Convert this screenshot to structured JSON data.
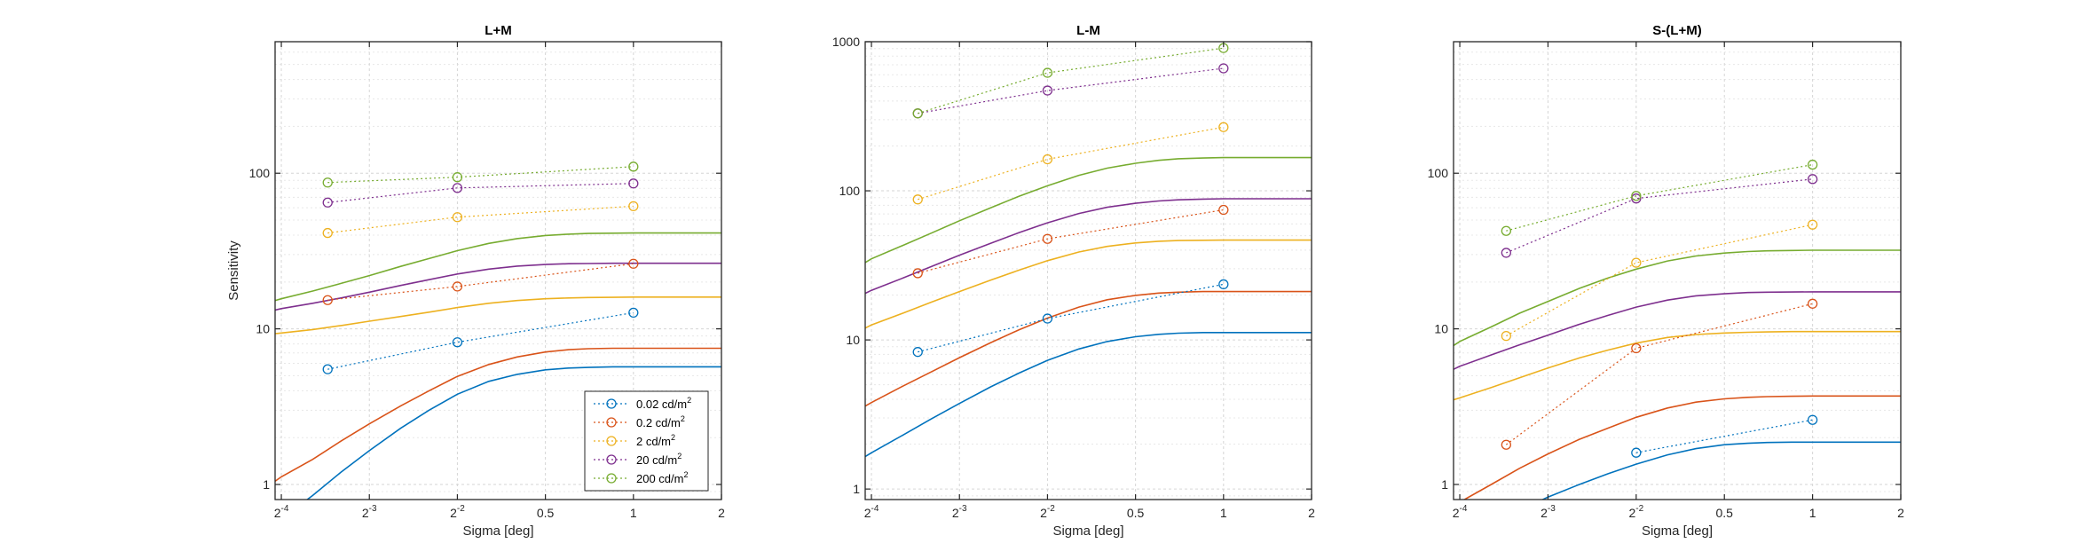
{
  "colors": [
    "#0072bd",
    "#d95319",
    "#edb120",
    "#7e2f8e",
    "#77ac30"
  ],
  "legend_labels": [
    "0.02 cd/m2",
    "0.2 cd/m2",
    "2 cd/m2",
    "20 cd/m2",
    "200 cd/m2"
  ],
  "chart_data": [
    {
      "type": "line",
      "title": "L+M",
      "xlabel": "Sigma [deg]",
      "ylabel": "Sensitivity",
      "xscale": "log2",
      "yscale": "log10",
      "xlim": [
        0.0595,
        2
      ],
      "ylim": [
        0.8,
        700
      ],
      "xticks": [
        {
          "v": 0.0625,
          "base": "2",
          "exp": "-4"
        },
        {
          "v": 0.125,
          "base": "2",
          "exp": "-3"
        },
        {
          "v": 0.25,
          "base": "2",
          "exp": "-2"
        },
        {
          "v": 0.5,
          "base": "0.5",
          "exp": ""
        },
        {
          "v": 1,
          "base": "1",
          "exp": ""
        },
        {
          "v": 2,
          "base": "2",
          "exp": ""
        }
      ],
      "yticks": [
        {
          "v": 1,
          "label": "1"
        },
        {
          "v": 10,
          "label": "10"
        },
        {
          "v": 100,
          "label": "100"
        }
      ],
      "grid": true,
      "legend": "bottom-right",
      "measured": [
        {
          "name": "0.02 cd/m2",
          "x": [
            0.09,
            0.25,
            1
          ],
          "y": [
            5.5,
            8.2,
            12.7
          ]
        },
        {
          "name": "0.2 cd/m2",
          "x": [
            0.09,
            0.25,
            1
          ],
          "y": [
            15.3,
            18.7,
            26.2
          ]
        },
        {
          "name": "2 cd/m2",
          "x": [
            0.09,
            0.25,
            1
          ],
          "y": [
            41.3,
            52.2,
            61.4
          ]
        },
        {
          "name": "20 cd/m2",
          "x": [
            0.09,
            0.25,
            1
          ],
          "y": [
            64.8,
            80.4,
            85.9
          ]
        },
        {
          "name": "200 cd/m2",
          "x": [
            0.09,
            0.25,
            1
          ],
          "y": [
            87.1,
            94.3,
            110.2
          ]
        }
      ],
      "fits": [
        {
          "x": [
            0.0595,
            0.0625,
            0.08,
            0.1,
            0.125,
            0.16,
            0.2,
            0.25,
            0.32,
            0.4,
            0.5,
            0.6,
            0.7,
            0.85,
            1,
            1.2,
            1.5,
            2
          ],
          "y": [
            0.55,
            0.6,
            0.85,
            1.2,
            1.65,
            2.3,
            3.0,
            3.8,
            4.6,
            5.1,
            5.45,
            5.6,
            5.65,
            5.7,
            5.7,
            5.7,
            5.7,
            5.7
          ]
        },
        {
          "x": [
            0.0595,
            0.0625,
            0.08,
            0.1,
            0.125,
            0.16,
            0.2,
            0.25,
            0.32,
            0.4,
            0.5,
            0.6,
            0.7,
            0.85,
            1,
            1.2,
            1.5,
            2
          ],
          "y": [
            1.05,
            1.12,
            1.45,
            1.9,
            2.45,
            3.2,
            4.0,
            4.95,
            5.9,
            6.6,
            7.1,
            7.35,
            7.45,
            7.5,
            7.5,
            7.5,
            7.5,
            7.5
          ]
        },
        {
          "x": [
            0.0595,
            0.0625,
            0.08,
            0.1,
            0.125,
            0.16,
            0.2,
            0.25,
            0.32,
            0.4,
            0.5,
            0.6,
            0.7,
            0.85,
            1,
            1.2,
            1.5,
            2
          ],
          "y": [
            9.3,
            9.4,
            9.9,
            10.5,
            11.2,
            12.0,
            12.8,
            13.7,
            14.6,
            15.2,
            15.6,
            15.8,
            15.9,
            15.95,
            16,
            16,
            16,
            16
          ]
        },
        {
          "x": [
            0.0595,
            0.0625,
            0.08,
            0.1,
            0.125,
            0.16,
            0.2,
            0.25,
            0.32,
            0.4,
            0.5,
            0.6,
            0.7,
            0.85,
            1,
            1.2,
            1.5,
            2
          ],
          "y": [
            13.2,
            13.5,
            14.6,
            15.8,
            17.2,
            19.0,
            20.7,
            22.5,
            24.2,
            25.3,
            25.9,
            26.2,
            26.3,
            26.4,
            26.4,
            26.4,
            26.4,
            26.4
          ]
        },
        {
          "x": [
            0.0595,
            0.0625,
            0.08,
            0.1,
            0.125,
            0.16,
            0.2,
            0.25,
            0.32,
            0.4,
            0.5,
            0.6,
            0.7,
            0.85,
            1,
            1.2,
            1.5,
            2
          ],
          "y": [
            15.2,
            15.6,
            17.5,
            19.6,
            22.0,
            25.2,
            28.3,
            31.8,
            35.4,
            38.0,
            39.8,
            40.6,
            41.0,
            41.2,
            41.3,
            41.3,
            41.3,
            41.3
          ]
        }
      ]
    },
    {
      "type": "line",
      "title": "L-M",
      "xlabel": "Sigma [deg]",
      "ylabel": "",
      "xscale": "log2",
      "yscale": "log10",
      "xlim": [
        0.0595,
        2
      ],
      "ylim": [
        0.85,
        1000
      ],
      "xticks": [
        {
          "v": 0.0625,
          "base": "2",
          "exp": "-4"
        },
        {
          "v": 0.125,
          "base": "2",
          "exp": "-3"
        },
        {
          "v": 0.25,
          "base": "2",
          "exp": "-2"
        },
        {
          "v": 0.5,
          "base": "0.5",
          "exp": ""
        },
        {
          "v": 1,
          "base": "1",
          "exp": ""
        },
        {
          "v": 2,
          "base": "2",
          "exp": ""
        }
      ],
      "yticks": [
        {
          "v": 1,
          "label": "1"
        },
        {
          "v": 10,
          "label": "10"
        },
        {
          "v": 100,
          "label": "100"
        },
        {
          "v": 1000,
          "label": "1000"
        }
      ],
      "grid": true,
      "legend": "none",
      "measured": [
        {
          "name": "0.02 cd/m2",
          "x": [
            0.09,
            0.25,
            1
          ],
          "y": [
            8.3,
            13.9,
            23.6
          ]
        },
        {
          "name": "0.2 cd/m2",
          "x": [
            0.09,
            0.25,
            1
          ],
          "y": [
            28.0,
            47.6,
            74.5
          ]
        },
        {
          "name": "2 cd/m2",
          "x": [
            0.09,
            0.25,
            1
          ],
          "y": [
            87.5,
            162.7,
            267.4
          ]
        },
        {
          "name": "20 cd/m2",
          "x": [
            0.09,
            0.25,
            1
          ],
          "y": [
            330.5,
            470.3,
            663.0
          ]
        },
        {
          "name": "200 cd/m2",
          "x": [
            0.09,
            0.25,
            1
          ],
          "y": [
            330.5,
            618.5,
            906.6
          ]
        }
      ],
      "fits": [
        {
          "x": [
            0.0595,
            0.0625,
            0.08,
            0.1,
            0.125,
            0.16,
            0.2,
            0.25,
            0.32,
            0.4,
            0.5,
            0.6,
            0.7,
            0.85,
            1,
            1.2,
            1.5,
            2
          ],
          "y": [
            1.65,
            1.75,
            2.3,
            2.95,
            3.75,
            4.85,
            6.0,
            7.3,
            8.7,
            9.75,
            10.5,
            10.9,
            11.1,
            11.2,
            11.2,
            11.2,
            11.2,
            11.2
          ]
        },
        {
          "x": [
            0.0595,
            0.0625,
            0.08,
            0.1,
            0.125,
            0.16,
            0.2,
            0.25,
            0.32,
            0.4,
            0.5,
            0.6,
            0.7,
            0.85,
            1,
            1.2,
            1.5,
            2
          ],
          "y": [
            3.6,
            3.8,
            4.9,
            6.1,
            7.6,
            9.6,
            11.7,
            14.0,
            16.6,
            18.6,
            19.9,
            20.6,
            20.9,
            21.1,
            21.1,
            21.1,
            21.1,
            21.1
          ]
        },
        {
          "x": [
            0.0595,
            0.0625,
            0.08,
            0.1,
            0.125,
            0.16,
            0.2,
            0.25,
            0.32,
            0.4,
            0.5,
            0.6,
            0.7,
            0.85,
            1,
            1.2,
            1.5,
            2
          ],
          "y": [
            12.0,
            12.6,
            15.1,
            17.9,
            21.1,
            25.2,
            29.4,
            34.0,
            38.9,
            42.4,
            44.7,
            45.9,
            46.4,
            46.6,
            46.7,
            46.7,
            46.7,
            46.7
          ]
        },
        {
          "x": [
            0.0595,
            0.0625,
            0.08,
            0.1,
            0.125,
            0.16,
            0.2,
            0.25,
            0.32,
            0.4,
            0.5,
            0.6,
            0.7,
            0.85,
            1,
            1.2,
            1.5,
            2
          ],
          "y": [
            20.5,
            21.5,
            26.0,
            31.0,
            37.0,
            44.5,
            52.5,
            61.0,
            70.5,
            77.5,
            82.5,
            85.5,
            87.0,
            88.0,
            88.5,
            88.5,
            88.5,
            88.5
          ]
        },
        {
          "x": [
            0.0595,
            0.0625,
            0.08,
            0.1,
            0.125,
            0.16,
            0.2,
            0.25,
            0.32,
            0.4,
            0.5,
            0.6,
            0.7,
            0.85,
            1,
            1.2,
            1.5,
            2
          ],
          "y": [
            33.0,
            35.0,
            43.0,
            52.0,
            63.0,
            77.0,
            92.0,
            108.0,
            127.0,
            142.0,
            153.0,
            160.0,
            164.0,
            166.0,
            167.0,
            167.0,
            167.0,
            167.0
          ]
        }
      ]
    },
    {
      "type": "line",
      "title": "S-(L+M)",
      "xlabel": "Sigma [deg]",
      "ylabel": "",
      "xscale": "log2",
      "yscale": "log10",
      "xlim": [
        0.0595,
        2
      ],
      "ylim": [
        0.8,
        700
      ],
      "xticks": [
        {
          "v": 0.0625,
          "base": "2",
          "exp": "-4"
        },
        {
          "v": 0.125,
          "base": "2",
          "exp": "-3"
        },
        {
          "v": 0.25,
          "base": "2",
          "exp": "-2"
        },
        {
          "v": 0.5,
          "base": "0.5",
          "exp": ""
        },
        {
          "v": 1,
          "base": "1",
          "exp": ""
        },
        {
          "v": 2,
          "base": "2",
          "exp": ""
        }
      ],
      "yticks": [
        {
          "v": 1,
          "label": "1"
        },
        {
          "v": 10,
          "label": "10"
        },
        {
          "v": 100,
          "label": "100"
        }
      ],
      "grid": true,
      "legend": "none",
      "measured": [
        {
          "name": "0.02 cd/m2",
          "x": [
            0.25,
            1
          ],
          "y": [
            1.6,
            2.6
          ]
        },
        {
          "name": "0.2 cd/m2",
          "x": [
            0.09,
            0.25,
            1
          ],
          "y": [
            1.8,
            7.5,
            14.5
          ]
        },
        {
          "name": "2 cd/m2",
          "x": [
            0.09,
            0.25,
            1
          ],
          "y": [
            9.0,
            26.6,
            46.7
          ]
        },
        {
          "name": "20 cd/m2",
          "x": [
            0.09,
            0.25,
            1
          ],
          "y": [
            30.8,
            68.8,
            91.7
          ]
        },
        {
          "name": "200 cd/m2",
          "x": [
            0.09,
            0.25,
            1
          ],
          "y": [
            42.6,
            71.5,
            113.5
          ]
        }
      ],
      "fits": [
        {
          "x": [
            0.0595,
            0.0625,
            0.08,
            0.1,
            0.125,
            0.16,
            0.2,
            0.25,
            0.32,
            0.4,
            0.5,
            0.6,
            0.7,
            0.85,
            1,
            1.2,
            1.5,
            2
          ],
          "y": [
            0.4,
            0.43,
            0.55,
            0.68,
            0.83,
            1.0,
            1.17,
            1.35,
            1.55,
            1.7,
            1.8,
            1.84,
            1.86,
            1.87,
            1.87,
            1.87,
            1.87,
            1.87
          ]
        },
        {
          "x": [
            0.0595,
            0.0625,
            0.08,
            0.1,
            0.125,
            0.16,
            0.2,
            0.25,
            0.32,
            0.4,
            0.5,
            0.6,
            0.7,
            0.85,
            1,
            1.2,
            1.5,
            2
          ],
          "y": [
            0.72,
            0.77,
            1.0,
            1.27,
            1.57,
            1.95,
            2.3,
            2.7,
            3.1,
            3.38,
            3.55,
            3.63,
            3.67,
            3.69,
            3.7,
            3.7,
            3.7,
            3.7
          ]
        },
        {
          "x": [
            0.0595,
            0.0625,
            0.08,
            0.1,
            0.125,
            0.16,
            0.2,
            0.25,
            0.32,
            0.4,
            0.5,
            0.6,
            0.7,
            0.85,
            1,
            1.2,
            1.5,
            2
          ],
          "y": [
            3.5,
            3.6,
            4.2,
            4.85,
            5.6,
            6.5,
            7.3,
            8.1,
            8.8,
            9.2,
            9.4,
            9.5,
            9.55,
            9.6,
            9.6,
            9.6,
            9.6,
            9.6
          ]
        },
        {
          "x": [
            0.0595,
            0.0625,
            0.08,
            0.1,
            0.125,
            0.16,
            0.2,
            0.25,
            0.32,
            0.4,
            0.5,
            0.6,
            0.7,
            0.85,
            1,
            1.2,
            1.5,
            2
          ],
          "y": [
            5.5,
            5.75,
            6.8,
            7.9,
            9.1,
            10.7,
            12.2,
            13.8,
            15.3,
            16.3,
            16.8,
            17.1,
            17.2,
            17.25,
            17.3,
            17.3,
            17.3,
            17.3
          ]
        },
        {
          "x": [
            0.0595,
            0.0625,
            0.08,
            0.1,
            0.125,
            0.16,
            0.2,
            0.25,
            0.32,
            0.4,
            0.5,
            0.6,
            0.7,
            0.85,
            1,
            1.2,
            1.5,
            2
          ],
          "y": [
            7.8,
            8.3,
            10.3,
            12.6,
            15.0,
            18.2,
            21.2,
            24.2,
            27.3,
            29.4,
            30.7,
            31.4,
            31.7,
            31.9,
            32.0,
            32.0,
            32.0,
            32.0
          ]
        }
      ]
    }
  ]
}
